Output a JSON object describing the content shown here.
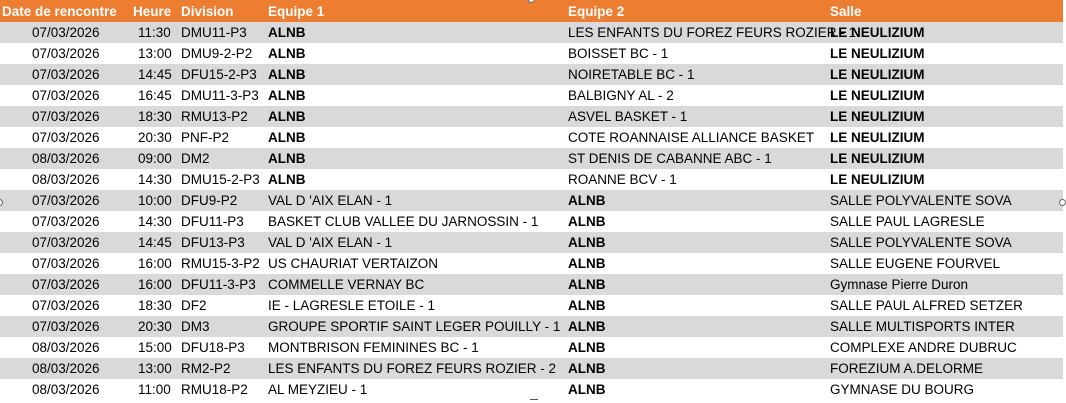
{
  "headers": {
    "date": "Date de rencontre",
    "time": "Heure",
    "division": "Division",
    "team1": "Equipe 1",
    "team2": "Equipe 2",
    "venue": "Salle"
  },
  "rows": [
    {
      "date": "07/03/2026",
      "time": "11:30",
      "division": "DMU11-P3",
      "team1": "ALNB",
      "team2": "LES ENFANTS DU FOREZ FEURS ROZIER - 1",
      "venue": "LE NEULIZIUM"
    },
    {
      "date": "07/03/2026",
      "time": "13:00",
      "division": "DMU9-2-P2",
      "team1": "ALNB",
      "team2": "BOISSET BC - 1",
      "venue": "LE NEULIZIUM"
    },
    {
      "date": "07/03/2026",
      "time": "14:45",
      "division": "DFU15-2-P3",
      "team1": "ALNB",
      "team2": "NOIRETABLE BC - 1",
      "venue": "LE NEULIZIUM"
    },
    {
      "date": "07/03/2026",
      "time": "16:45",
      "division": "DMU11-3-P3",
      "team1": "ALNB",
      "team2": "BALBIGNY AL - 2",
      "venue": "LE NEULIZIUM"
    },
    {
      "date": "07/03/2026",
      "time": "18:30",
      "division": "RMU13-P2",
      "team1": "ALNB",
      "team2": "ASVEL BASKET - 1",
      "venue": "LE NEULIZIUM"
    },
    {
      "date": "07/03/2026",
      "time": "20:30",
      "division": "PNF-P2",
      "team1": "ALNB",
      "team2": "COTE ROANNAISE ALLIANCE BASKET",
      "venue": "LE NEULIZIUM"
    },
    {
      "date": "08/03/2026",
      "time": "09:00",
      "division": "DM2",
      "team1": "ALNB",
      "team2": "ST DENIS DE CABANNE ABC - 1",
      "venue": "LE NEULIZIUM"
    },
    {
      "date": "08/03/2026",
      "time": "14:30",
      "division": "DMU15-2-P3",
      "team1": "ALNB",
      "team2": "ROANNE BCV - 1",
      "venue": "LE NEULIZIUM"
    },
    {
      "date": "07/03/2026",
      "time": "10:00",
      "division": "DFU9-P2",
      "team1": "VAL D 'AIX ELAN - 1",
      "team2": "ALNB",
      "venue": "SALLE POLYVALENTE SOVA"
    },
    {
      "date": "07/03/2026",
      "time": "14:30",
      "division": "DFU11-P3",
      "team1": "BASKET CLUB VALLEE DU JARNOSSIN - 1",
      "team2": "ALNB",
      "venue": "SALLE PAUL LAGRESLE"
    },
    {
      "date": "07/03/2026",
      "time": "14:45",
      "division": "DFU13-P3",
      "team1": "VAL D 'AIX ELAN - 1",
      "team2": "ALNB",
      "venue": "SALLE POLYVALENTE SOVA"
    },
    {
      "date": "07/03/2026",
      "time": "16:00",
      "division": "RMU15-3-P2",
      "team1": "US CHAURIAT VERTAIZON",
      "team2": "ALNB",
      "venue": "SALLE EUGENE FOURVEL"
    },
    {
      "date": "07/03/2026",
      "time": "16:00",
      "division": "DFU11-3-P3",
      "team1": "COMMELLE VERNAY BC",
      "team2": "ALNB",
      "venue": "Gymnase Pierre Duron"
    },
    {
      "date": "07/03/2026",
      "time": "18:30",
      "division": "DF2",
      "team1": "IE - LAGRESLE ETOILE - 1",
      "team2": "ALNB",
      "venue": "SALLE PAUL ALFRED SETZER"
    },
    {
      "date": "07/03/2026",
      "time": "20:30",
      "division": "DM3",
      "team1": "GROUPE SPORTIF SAINT LEGER POUILLY - 1",
      "team2": "ALNB",
      "venue": "SALLE MULTISPORTS INTER"
    },
    {
      "date": "08/03/2026",
      "time": "15:00",
      "division": "DFU18-P3",
      "team1": "MONTBRISON FEMININES BC - 1",
      "team2": "ALNB",
      "venue": "COMPLEXE ANDRE DUBRUC"
    },
    {
      "date": "08/03/2026",
      "time": "13:00",
      "division": "RM2-P2",
      "team1": "LES ENFANTS DU FOREZ FEURS ROZIER - 2",
      "team2": "ALNB",
      "venue": "FOREZIUM A.DELORME"
    },
    {
      "date": "08/03/2026",
      "time": "11:00",
      "division": "RMU18-P2",
      "team1": "AL MEYZIEU - 1",
      "team2": "ALNB",
      "venue": "GYMNASE DU BOURG"
    }
  ],
  "colors": {
    "header_bg": "#ed7d31",
    "header_text": "#ffffff",
    "band_gray": "#d9d9d9",
    "band_white": "#ffffff"
  }
}
